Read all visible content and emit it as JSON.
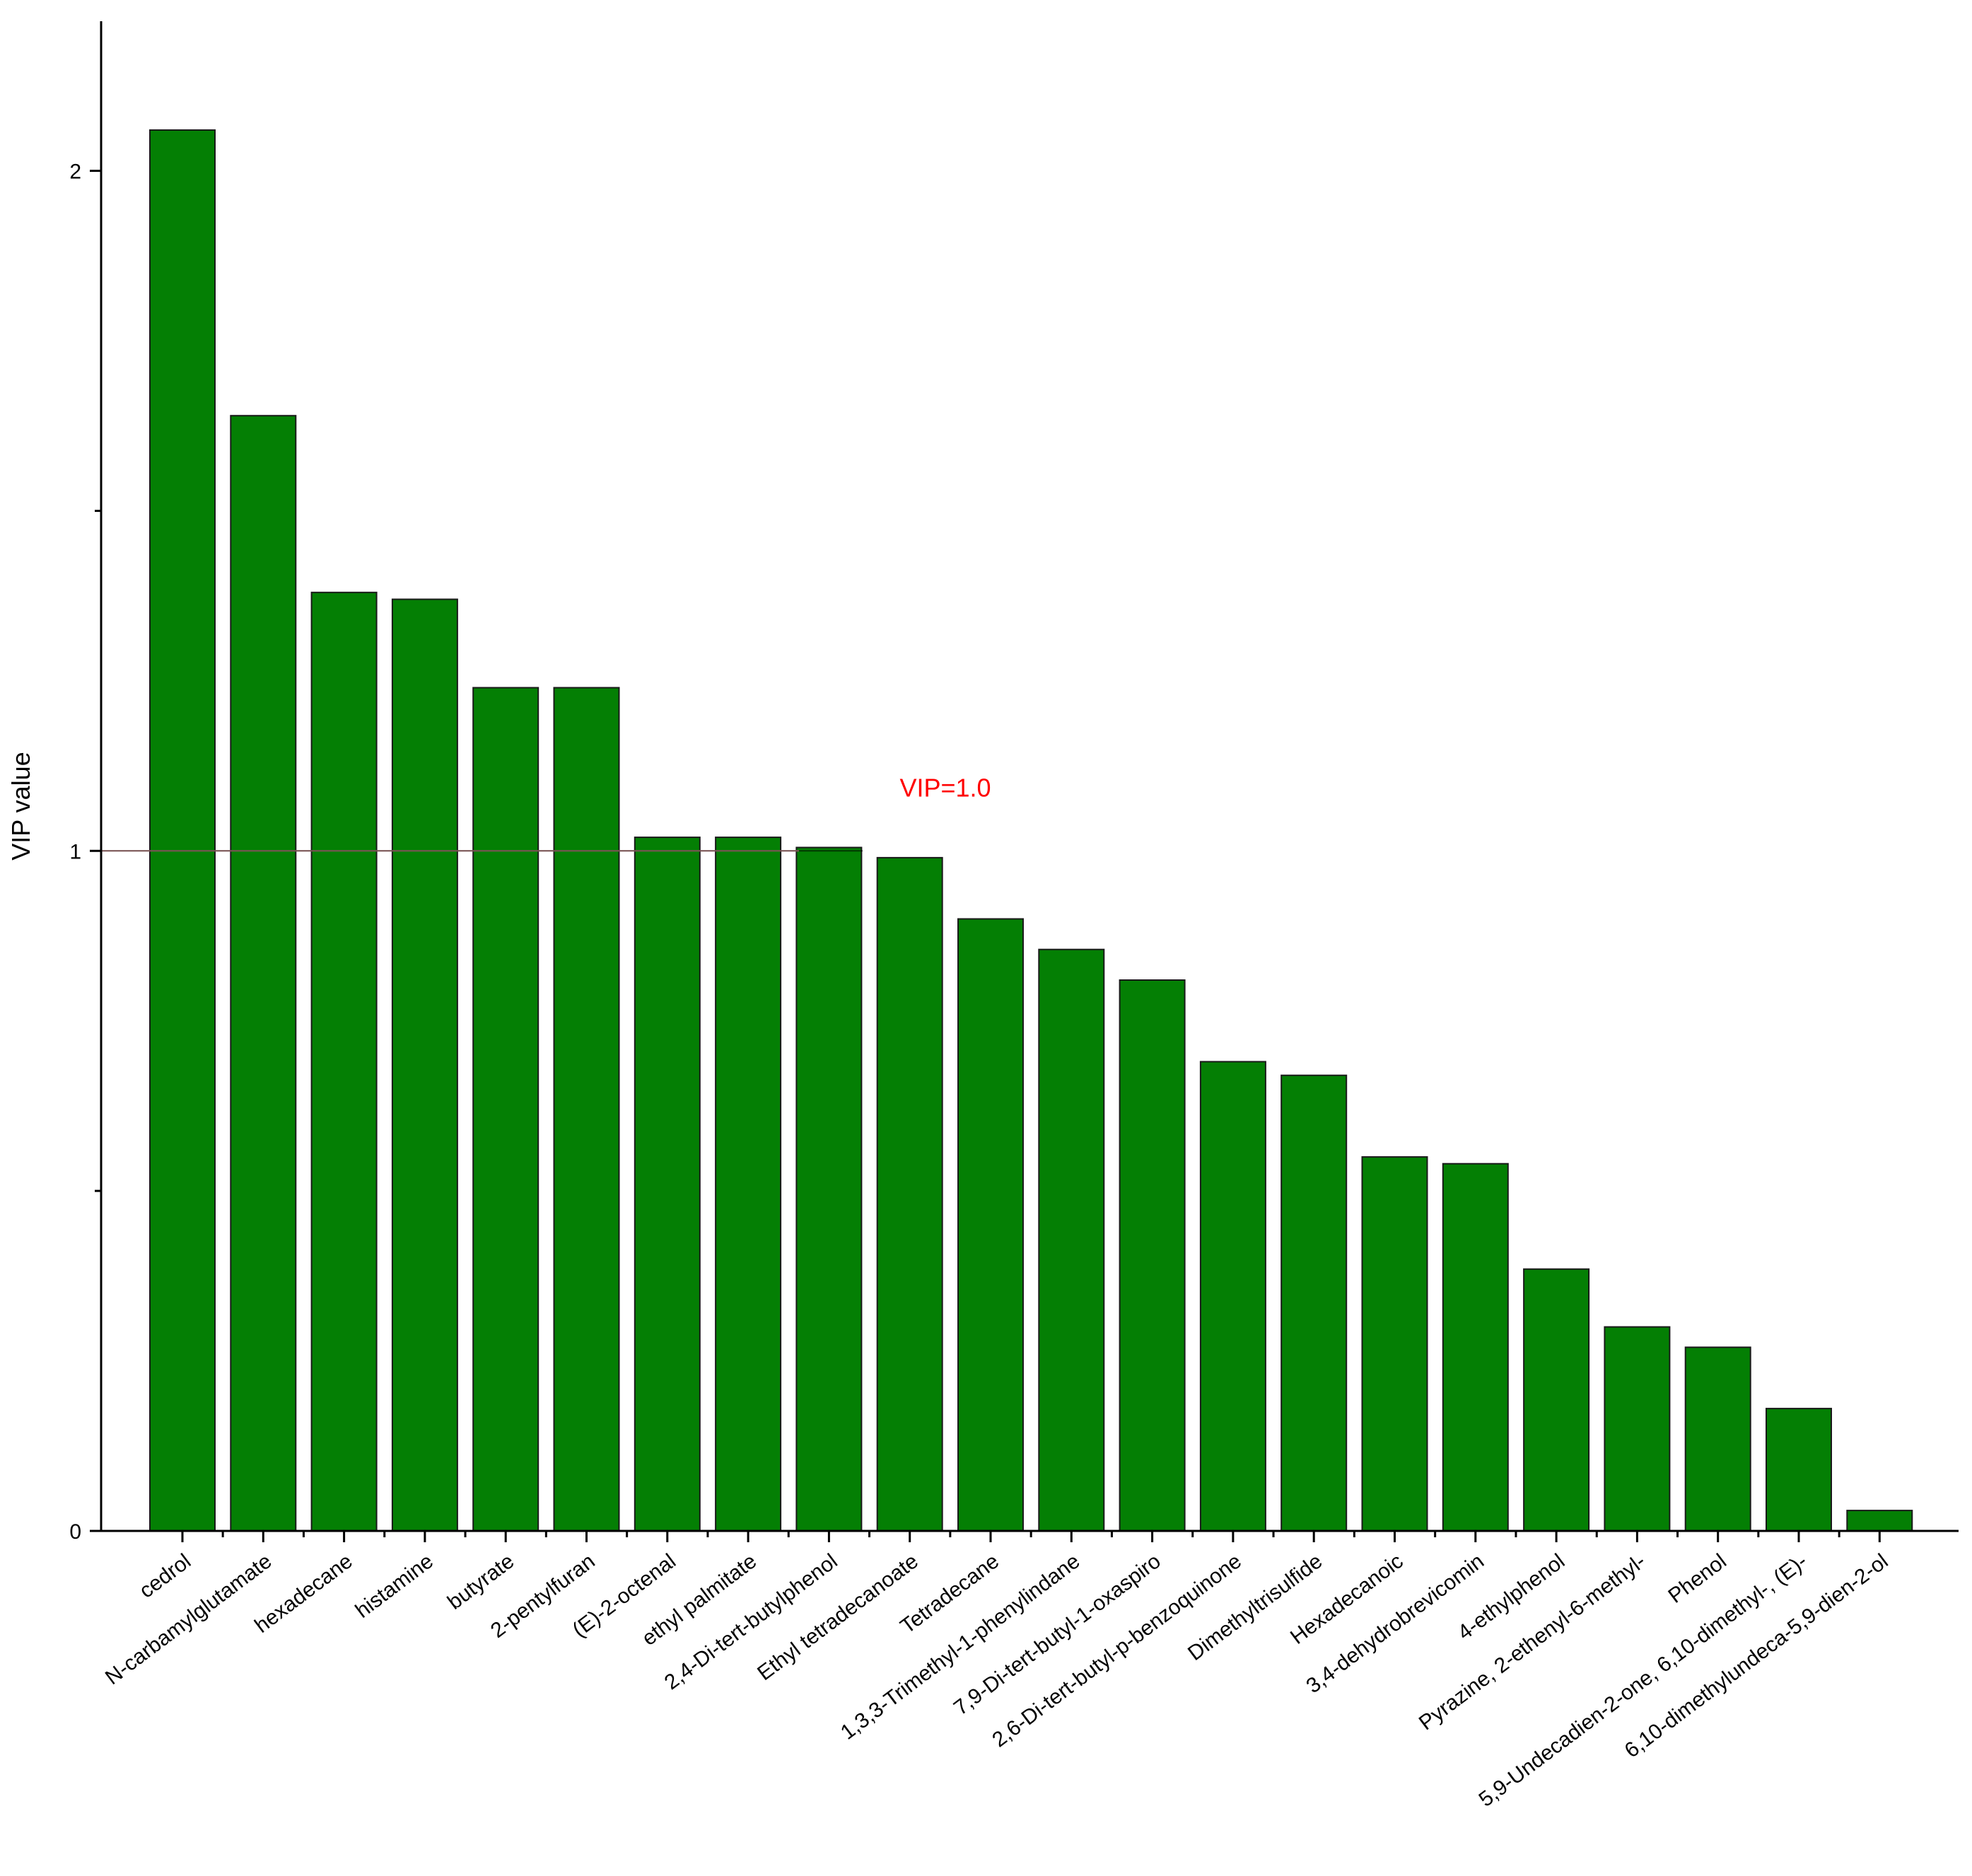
{
  "chart_data": {
    "type": "bar",
    "ylabel": "VIP value",
    "xlabel": "",
    "ylim": [
      0,
      2.22
    ],
    "yticks": [
      0,
      1,
      2
    ],
    "ytick_labels": [
      "0",
      "1",
      "2"
    ],
    "yminor_ticks": [
      0.5,
      1.5
    ],
    "grid": false,
    "bar_color": "#047f04",
    "bar_edge_color": "#1a1a1a",
    "categories": [
      "cedrol",
      "N-carbamylglutamate",
      "hexadecane",
      "histamine",
      "butyrate",
      "2-pentylfuran",
      "(E)-2-octenal",
      "ethyl palmitate",
      "2,4-Di-tert-butylphenol",
      "Ethyl tetradecanoate",
      "Tetradecane",
      "1,3,3-Trimethyl-1-phenylindane",
      "7,9-Di-tert-butyl-1-oxaspiro",
      "2,6-Di-tert-butyl-p-benzoquinone",
      "Dimethyltrisulfide",
      "Hexadecanoic",
      "3,4-dehydrobrevicomin",
      "4-ethylphenol",
      "Pyrazine, 2-ethenyl-6-methyl-",
      "Phenol",
      "5,9-Undecadien-2-one, 6,10-dimethyl-, (E)-",
      "6,10-dimethylundeca-5,9-dien-2-ol"
    ],
    "values": [
      2.06,
      1.64,
      1.38,
      1.37,
      1.24,
      1.24,
      1.02,
      1.02,
      1.005,
      0.99,
      0.9,
      0.855,
      0.81,
      0.69,
      0.67,
      0.55,
      0.54,
      0.385,
      0.3,
      0.27,
      0.18,
      0.03
    ],
    "reference_line": {
      "y": 1.0,
      "label": "VIP=1.0",
      "color": "#ff0000",
      "line_color": "#ffb0b0"
    }
  }
}
